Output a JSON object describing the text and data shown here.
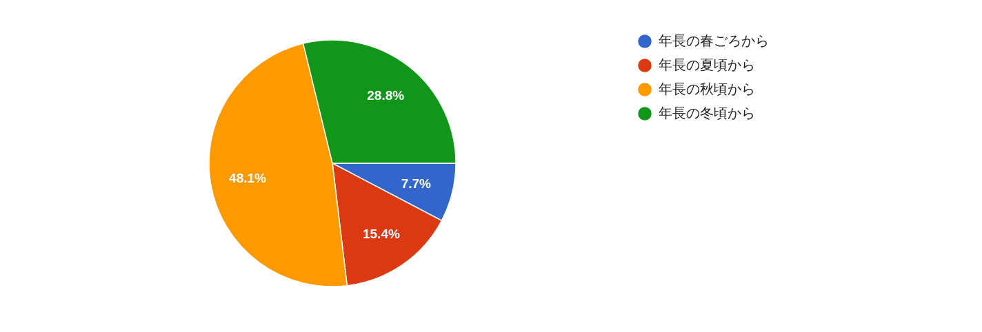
{
  "chart_data": {
    "type": "pie",
    "categories": [
      "年長の春ごろから",
      "年長の夏頃から",
      "年長の秋頃から",
      "年長の冬頃から"
    ],
    "values": [
      7.7,
      15.4,
      48.1,
      28.8
    ],
    "colors": [
      "#3366cc",
      "#dc3912",
      "#ff9900",
      "#109618"
    ],
    "value_labels": [
      "7.7%",
      "15.4%",
      "48.1%",
      "28.8%"
    ],
    "legend": "top right"
  }
}
